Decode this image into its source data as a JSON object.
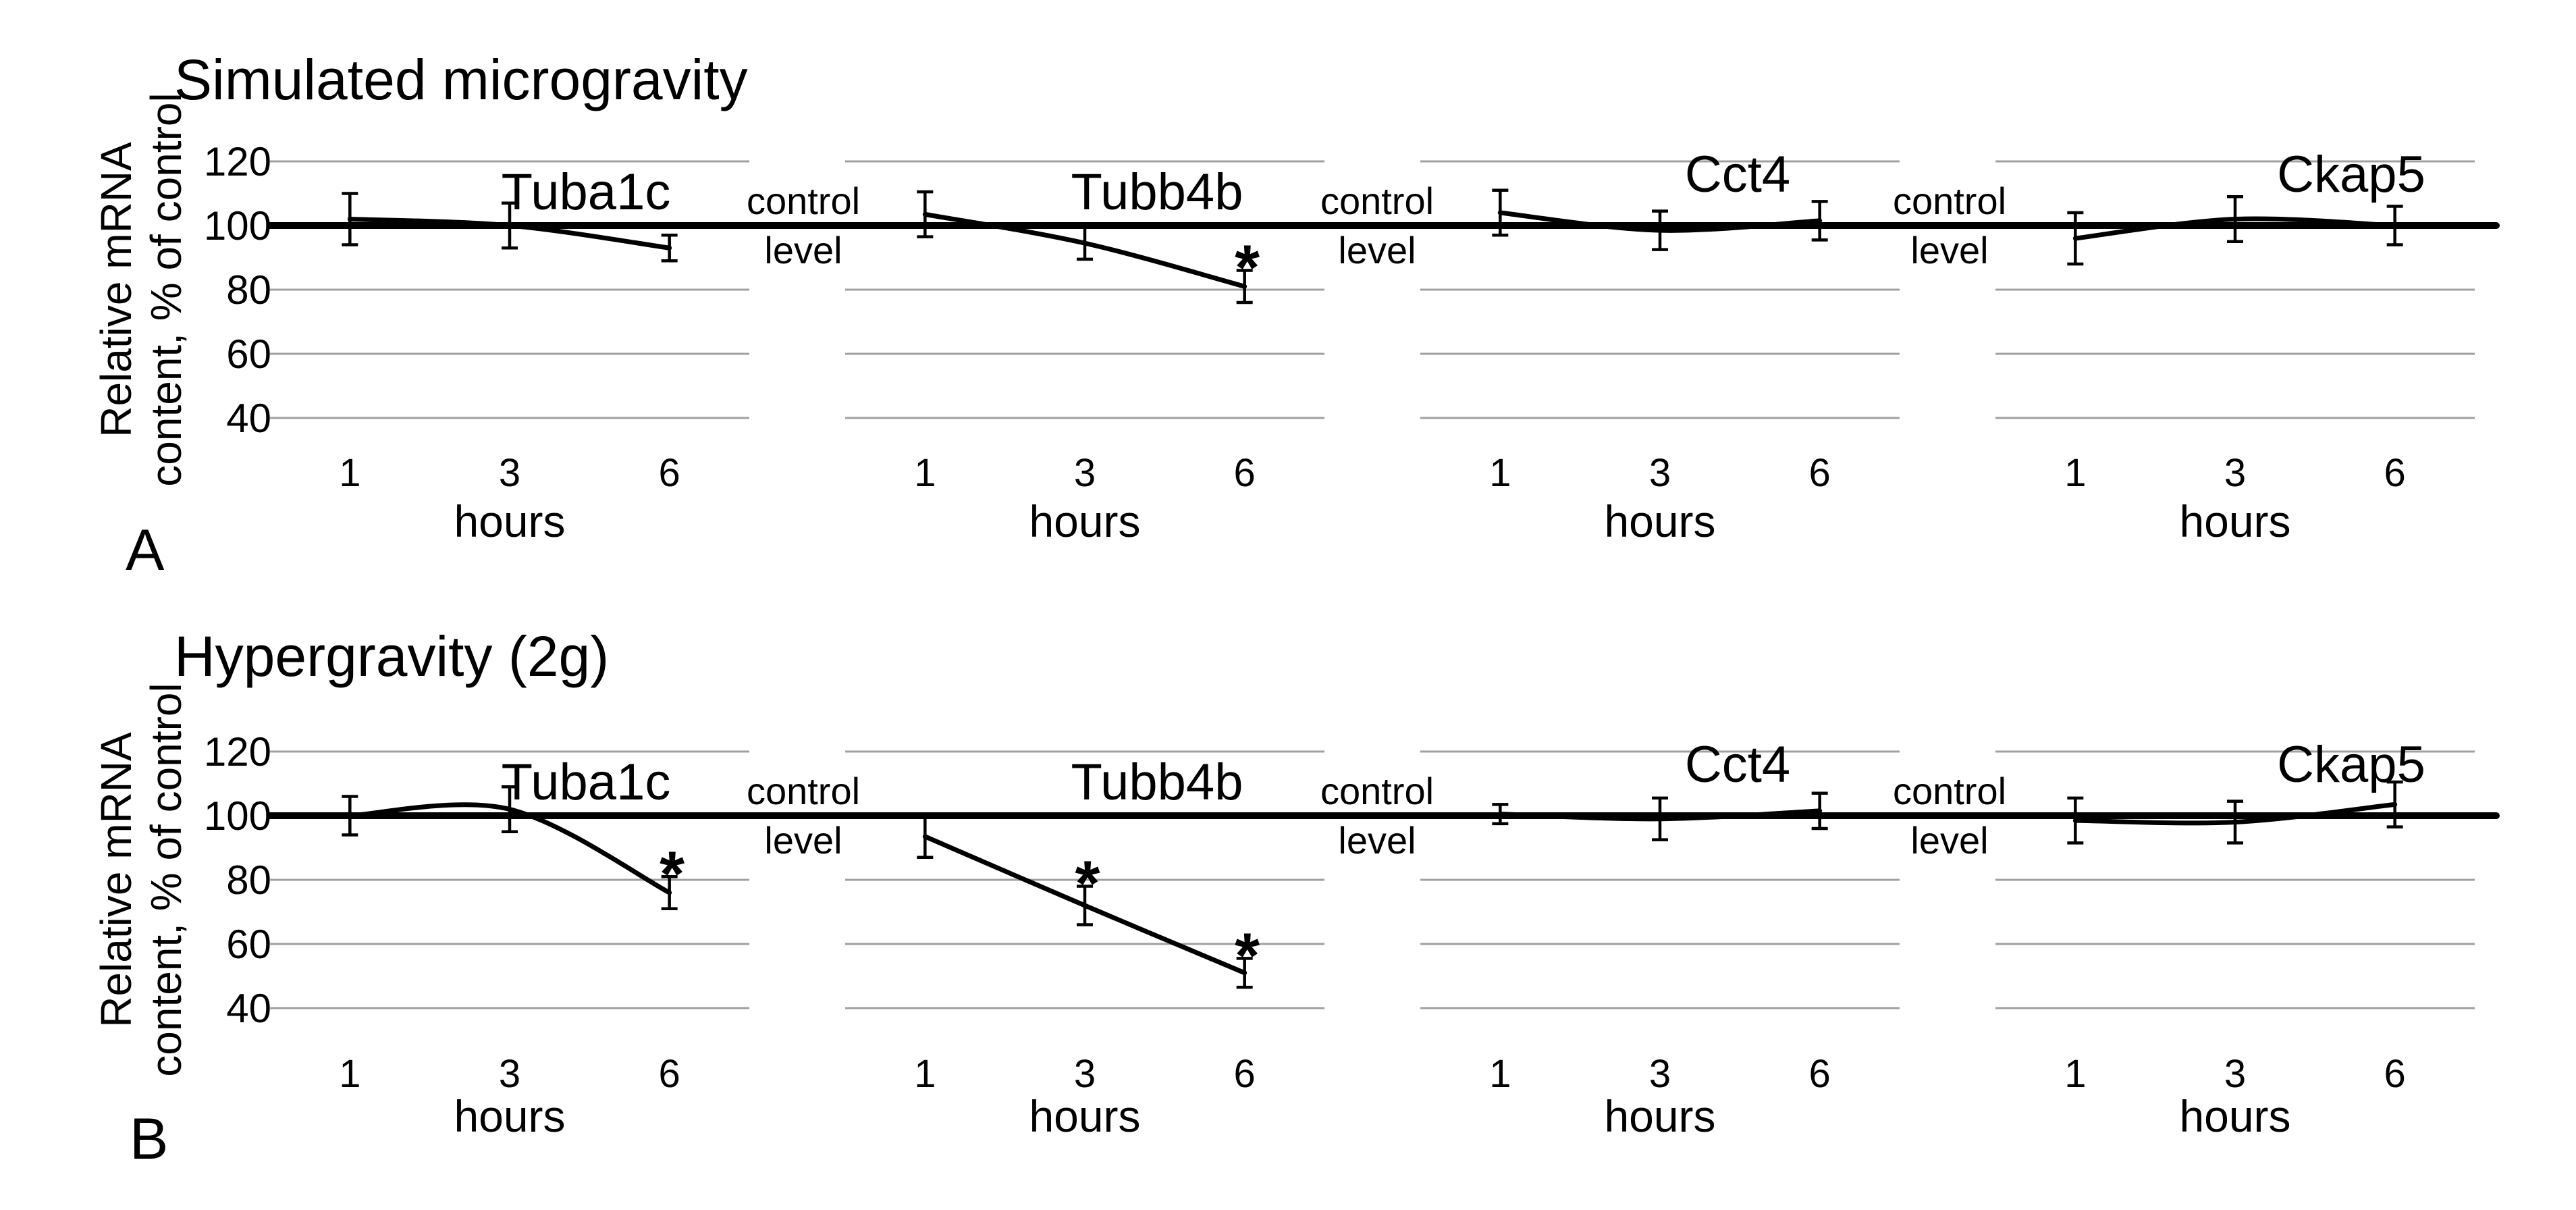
{
  "chart_data": [
    {
      "type": "line",
      "panel_label": "A",
      "panel_title": "Simulated microgravity",
      "xlabel": "hours",
      "ylabel": "Relative mRNA content, % of control",
      "ylabel_lines": [
        "Relative mRNA",
        "content, % of control"
      ],
      "x": [
        "1",
        "3",
        "6"
      ],
      "x_hours": [
        1,
        3,
        6
      ],
      "yticks": [
        120,
        100,
        80,
        60,
        40
      ],
      "ylim": [
        40,
        130
      ],
      "grid": true,
      "legend": "none",
      "control_level": 100,
      "control_label_lines": [
        "control",
        "level"
      ],
      "sig_marker": "*",
      "series": [
        {
          "name": "Tuba1c",
          "values": [
            102,
            100,
            93
          ],
          "errors": [
            8,
            7,
            4
          ],
          "significant": [
            false,
            false,
            false
          ]
        },
        {
          "name": "Tubb4b",
          "values": [
            103.5,
            94.5,
            81
          ],
          "errors": [
            7,
            5,
            5
          ],
          "significant": [
            false,
            false,
            true
          ]
        },
        {
          "name": "Cct4",
          "values": [
            104,
            98.5,
            101.5
          ],
          "errors": [
            7,
            6,
            6
          ],
          "significant": [
            false,
            false,
            false
          ]
        },
        {
          "name": "Ckap5",
          "values": [
            96,
            102,
            100
          ],
          "errors": [
            8,
            7,
            6
          ],
          "significant": [
            false,
            false,
            false
          ]
        }
      ]
    },
    {
      "type": "line",
      "panel_label": "B",
      "panel_title": "Hypergravity (2g)",
      "xlabel": "hours",
      "ylabel": "Relative mRNA content, % of control",
      "ylabel_lines": [
        "Relative mRNA",
        "content, % of control"
      ],
      "x": [
        "1",
        "3",
        "6"
      ],
      "x_hours": [
        1,
        3,
        6
      ],
      "yticks": [
        120,
        100,
        80,
        60,
        40
      ],
      "ylim": [
        40,
        130
      ],
      "grid": true,
      "legend": "none",
      "control_level": 100,
      "control_label_lines": [
        "control",
        "level"
      ],
      "sig_marker": "*",
      "series": [
        {
          "name": "Tuba1c",
          "values": [
            100,
            102,
            76
          ],
          "errors": [
            6,
            7,
            5
          ],
          "significant": [
            false,
            false,
            true
          ]
        },
        {
          "name": "Tubb4b",
          "values": [
            93.5,
            72,
            51
          ],
          "errors": [
            6.5,
            6,
            4.5
          ],
          "significant": [
            false,
            true,
            true
          ]
        },
        {
          "name": "Cct4",
          "values": [
            100.5,
            99,
            101.5
          ],
          "errors": [
            3,
            6.5,
            5.5
          ],
          "significant": [
            false,
            false,
            false
          ]
        },
        {
          "name": "Ckap5",
          "values": [
            98.5,
            98,
            103.5
          ],
          "errors": [
            7,
            6.5,
            7
          ],
          "significant": [
            false,
            false,
            false
          ]
        }
      ]
    }
  ],
  "colors": {
    "line": "#000000",
    "grid": "#a0a0a0",
    "text": "#000000",
    "background": "#ffffff"
  }
}
